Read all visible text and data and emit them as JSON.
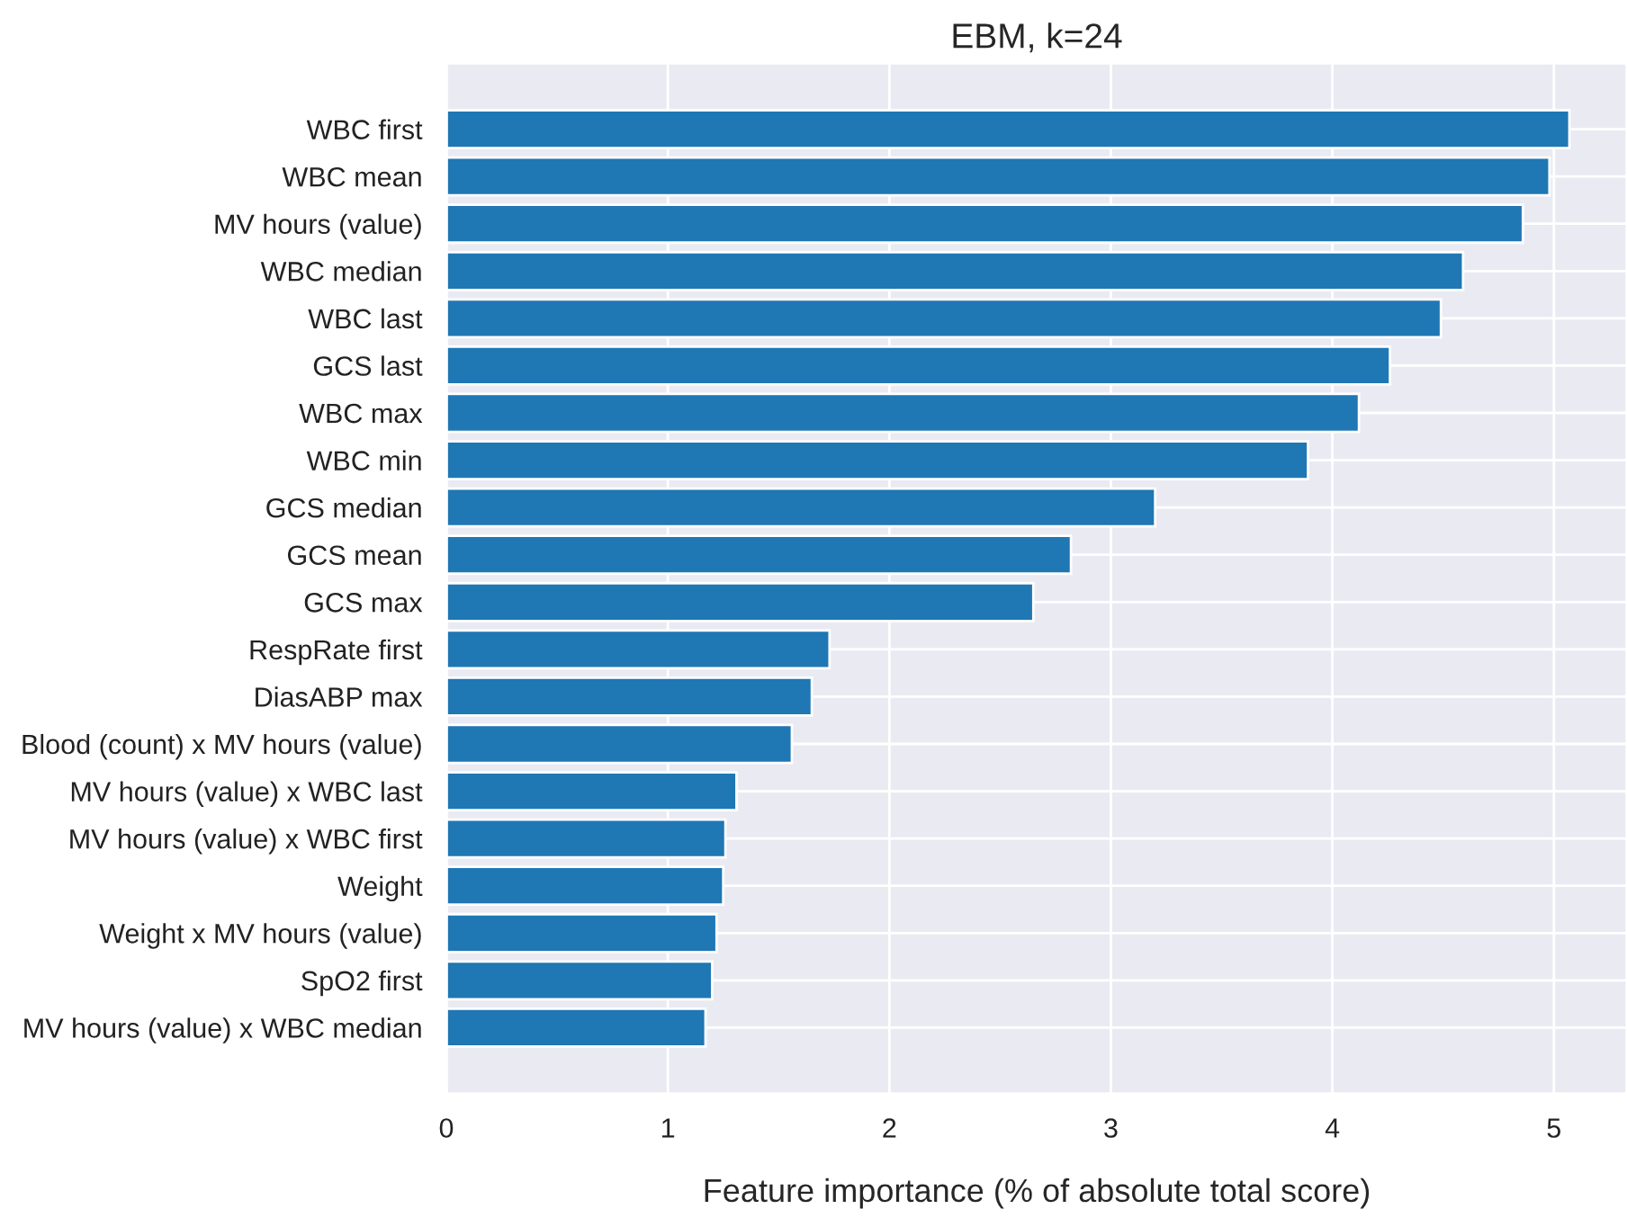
{
  "chart_data": {
    "type": "bar",
    "orientation": "horizontal",
    "title": "EBM, k=24",
    "xlabel": "Feature importance (% of absolute total score)",
    "categories": [
      "WBC first",
      "WBC mean",
      "MV hours (value)",
      "WBC median",
      "WBC last",
      "GCS last",
      "WBC max",
      "WBC min",
      "GCS median",
      "GCS mean",
      "GCS max",
      "RespRate first",
      "DiasABP max",
      "Blood (count) x MV hours (value)",
      "MV hours (value) x WBC last",
      "MV hours (value) x WBC first",
      "Weight",
      "Weight x MV hours (value)",
      "SpO2 first",
      "MV hours (value) x WBC median"
    ],
    "values": [
      5.07,
      4.98,
      4.86,
      4.59,
      4.49,
      4.26,
      4.12,
      3.89,
      3.2,
      2.82,
      2.65,
      1.73,
      1.65,
      1.56,
      1.31,
      1.26,
      1.25,
      1.22,
      1.2,
      1.17
    ],
    "color": "#1f77b4",
    "xlim": [
      0,
      5.33
    ],
    "xticks": [
      0,
      1,
      2,
      3,
      4,
      5
    ],
    "grid": true
  }
}
